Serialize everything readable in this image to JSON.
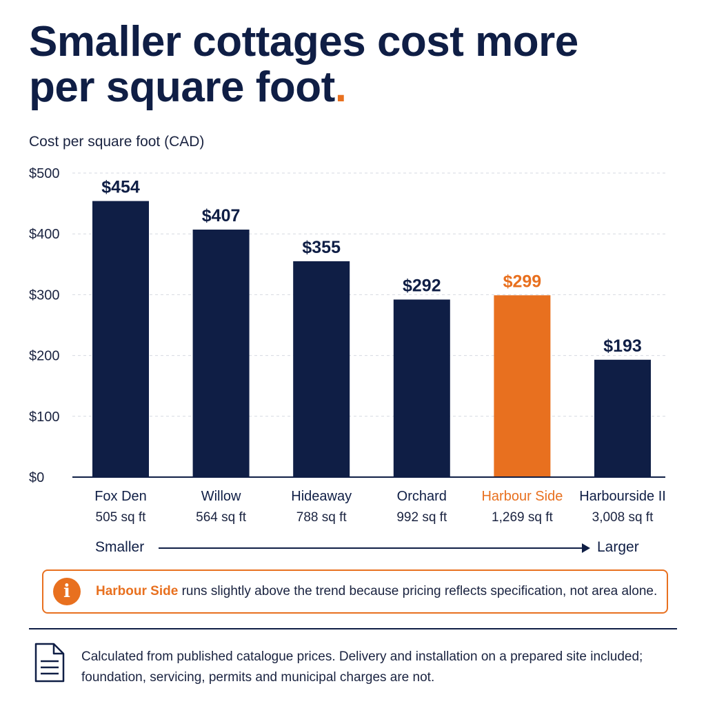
{
  "headline": {
    "text": "Smaller cottages cost more per square foot",
    "dot": "."
  },
  "subtitle": "Cost per square foot (CAD)",
  "colors": {
    "navy": "#0f1e45",
    "accent": "#e8701f",
    "grid": "#d6d9e0"
  },
  "chart_data": {
    "type": "bar",
    "title": "Smaller cottages cost more per square foot.",
    "ylabel": "Cost per square foot (CAD)",
    "ylim": [
      0,
      500
    ],
    "yticks": [
      "$0",
      "$100",
      "$200",
      "$300",
      "$400",
      "$500"
    ],
    "grid": true,
    "categories": [
      "Fox Den",
      "Willow",
      "Hideaway",
      "Orchard",
      "Harbour Side",
      "Harbourside II"
    ],
    "sizes": [
      "505 sq ft",
      "564 sq ft",
      "788 sq ft",
      "992 sq ft",
      "1,269 sq ft",
      "3,008 sq ft"
    ],
    "values": [
      454,
      407,
      355,
      292,
      299,
      193
    ],
    "value_labels": [
      "$454",
      "$407",
      "$355",
      "$292",
      "$299",
      "$193"
    ],
    "highlighted": [
      "Harbour Side"
    ]
  },
  "size_axis": {
    "left": "Smaller",
    "right": "Larger"
  },
  "callout": {
    "icon": "info-icon",
    "highlight": "Harbour Side",
    "text": " runs slightly above the trend because pricing reflects specification, not area alone."
  },
  "footnote": {
    "icon": "document-icon",
    "text": "Calculated from published catalogue prices. Delivery and installation on a prepared site included; foundation, servicing, permits and municipal charges are not."
  }
}
